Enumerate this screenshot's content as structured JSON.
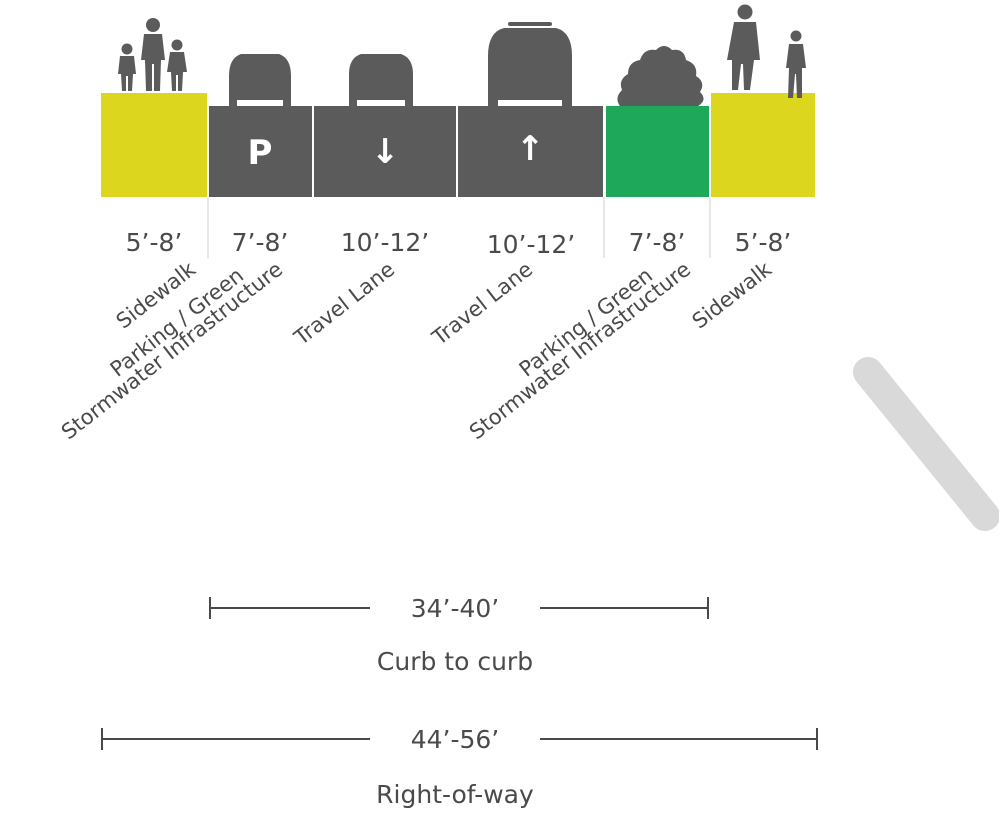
{
  "segments": [
    {
      "width": "5’-8’",
      "label_lines": [
        "Sidewalk"
      ],
      "color": "#dcd61e",
      "icon": "pedestrians-family-icon"
    },
    {
      "width": "7’-8’",
      "label_lines": [
        "Parking / Green",
        "Stormwater Infrastructure"
      ],
      "color": "#5b5b5b",
      "icon": "parked-car-icon",
      "symbol": "P"
    },
    {
      "width": "10’-12’",
      "label_lines": [
        "Travel Lane"
      ],
      "color": "#5b5b5b",
      "icon": "car-icon",
      "symbol": "↓"
    },
    {
      "width": "10’-12’",
      "label_lines": [
        "Travel Lane"
      ],
      "color": "#5b5b5b",
      "icon": "suv-icon",
      "symbol": "↑"
    },
    {
      "width": "7’-8’",
      "label_lines": [
        "Parking / Green",
        "Stormwater Infrastructure"
      ],
      "color": "#1ea85a",
      "icon": "shrub-icon"
    },
    {
      "width": "5’-8’",
      "label_lines": [
        "Sidewalk"
      ],
      "color": "#dcd61e",
      "icon": "pedestrians-walking-icon"
    }
  ],
  "dimensions": {
    "curb_to_curb": {
      "value": "34’-40’",
      "label": "Curb to curb"
    },
    "right_of_way": {
      "value": "44’-56’",
      "label": "Right-of-way"
    }
  },
  "colors": {
    "text": "#4a4a4a",
    "watermark": "#d9d9d9"
  }
}
